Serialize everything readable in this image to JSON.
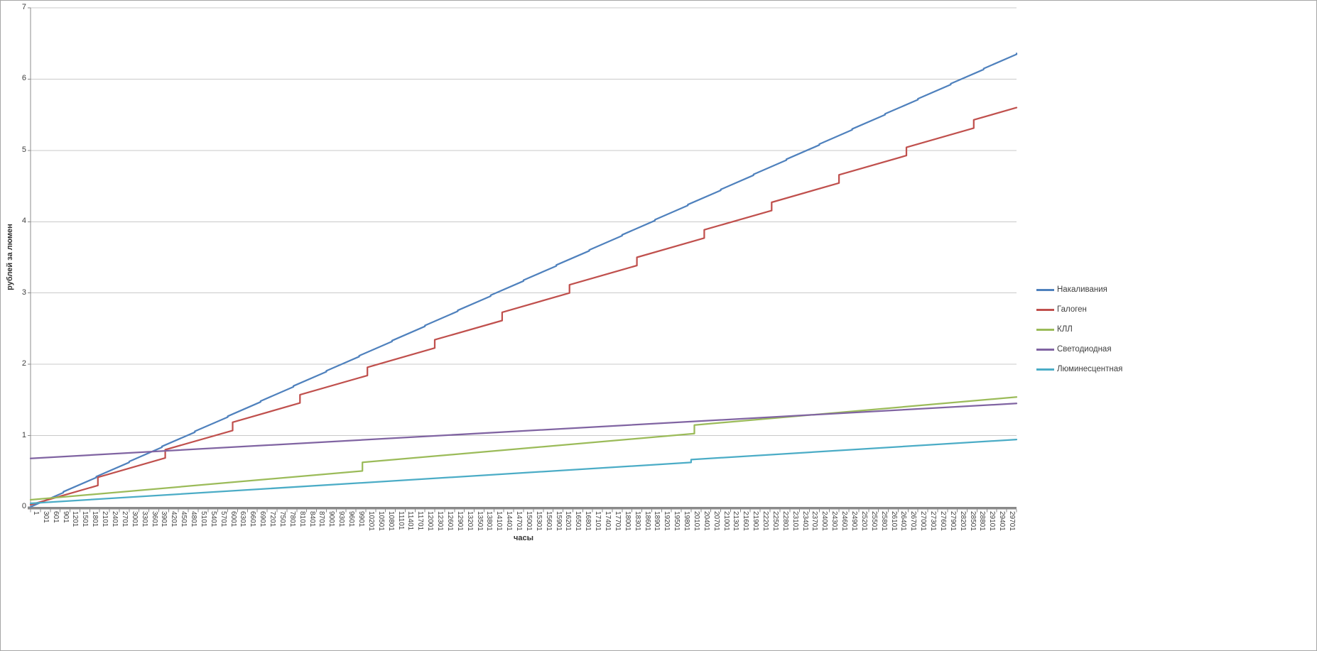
{
  "chart_data": {
    "type": "line",
    "title": "",
    "xlabel": "часы",
    "ylabel": "рублей за люмен",
    "x_range": [
      1,
      30001
    ],
    "ylim": [
      0,
      7
    ],
    "y_ticks": [
      0,
      1,
      2,
      3,
      4,
      5,
      6,
      7
    ],
    "x_ticks": {
      "first": 1,
      "step": 300,
      "count": 100,
      "labels": [
        1,
        301,
        601,
        901,
        1201,
        1501,
        1801,
        2101,
        2401,
        2701,
        3001,
        3301,
        3601,
        3901,
        4201,
        4501,
        4801,
        5101,
        5401,
        5701,
        6001,
        6301,
        6601,
        6901,
        7201,
        7501,
        7801,
        8101,
        8401,
        8701,
        9001,
        9301,
        9601,
        9901,
        10201,
        10501,
        10801,
        11101,
        11401,
        11701,
        12001,
        12301,
        12601,
        12901,
        13201,
        13501,
        13801,
        14101,
        14401,
        14701,
        15001,
        15301,
        15601,
        15901,
        16201,
        16501,
        16801,
        17101,
        17401,
        17701,
        18001,
        18301,
        18601,
        18901,
        19201,
        19501,
        19801,
        20101,
        20401,
        20701,
        21001,
        21301,
        21601,
        21901,
        22201,
        22501,
        22801,
        23101,
        23401,
        23701,
        24001,
        24301,
        24601,
        24901,
        25201,
        25501,
        25801,
        26101,
        26401,
        26701,
        27001,
        27301,
        27601,
        27901,
        28201,
        28501,
        28801,
        29101,
        29401,
        29701
      ]
    },
    "grid": "horizontal-major",
    "legend_position": "right-middle",
    "background": "#ffffff",
    "gridline_color": "#c9c9c9",
    "axis_color": "#8c8c8c",
    "text_color": "#3f3f3f",
    "series": [
      {
        "name": "Накаливания",
        "color": "#4F81BD",
        "shape": "rising line with tiny replacement steps",
        "model": {
          "start": 0.0,
          "slope_per_hour": 0.0002,
          "step_interval": 1000,
          "step_value": 0.012
        },
        "anchor_points": [
          [
            1,
            0.0
          ],
          [
            10000,
            2.12
          ],
          [
            20000,
            4.24
          ],
          [
            30001,
            6.36
          ]
        ]
      },
      {
        "name": "Галоген",
        "color": "#C0504D",
        "shape": "rising staircase line, step every ~2000 h",
        "model": {
          "start": 0.03,
          "slope_per_hour": 0.000132,
          "step_interval": 2050,
          "step_value": 0.115
        },
        "anchor_points": [
          [
            1,
            0.03
          ],
          [
            10000,
            1.81
          ],
          [
            20000,
            3.71
          ],
          [
            30001,
            5.6
          ]
        ]
      },
      {
        "name": "КЛЛ",
        "color": "#9BBB59",
        "shape": "shallow rising line with steps near 10000 h and 20000 h",
        "model": {
          "start": 0.1,
          "slope_per_hour": 4e-05,
          "step_interval": 10100,
          "step_value": 0.12
        },
        "anchor_points": [
          [
            1,
            0.1
          ],
          [
            10000,
            0.5
          ],
          [
            10200,
            0.63
          ],
          [
            20000,
            1.02
          ],
          [
            20300,
            1.15
          ],
          [
            30001,
            1.54
          ]
        ]
      },
      {
        "name": "Светодиодная",
        "color": "#8064A2",
        "shape": "straight line, no steps",
        "model": {
          "start": 0.68,
          "slope_per_hour": 2.57e-05,
          "step_interval": null,
          "step_value": 0
        },
        "anchor_points": [
          [
            1,
            0.68
          ],
          [
            15000,
            1.07
          ],
          [
            30001,
            1.45
          ]
        ]
      },
      {
        "name": "Люминесцентная",
        "color": "#4BACC6",
        "shape": "shallow rising line with one small step near 20000 h",
        "model": {
          "start": 0.05,
          "slope_per_hour": 2.85e-05,
          "step_interval": 20100,
          "step_value": 0.04
        },
        "anchor_points": [
          [
            1,
            0.05
          ],
          [
            20000,
            0.62
          ],
          [
            20200,
            0.66
          ],
          [
            30001,
            0.95
          ]
        ]
      }
    ]
  }
}
